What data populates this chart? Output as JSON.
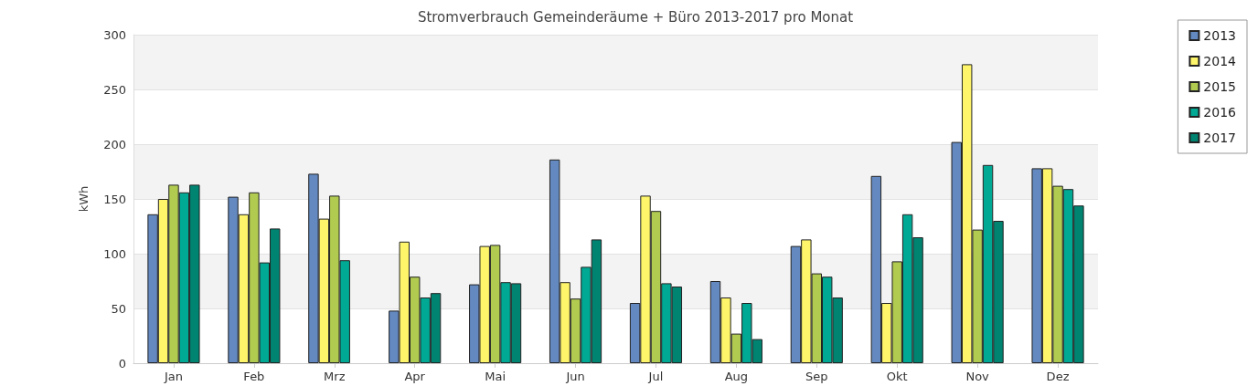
{
  "chart_data": {
    "type": "bar",
    "title": "Stromverbrauch Gemeinderäume + Büro 2013-2017 pro Monat",
    "ylabel": "kWh",
    "categories": [
      "Jan",
      "Feb",
      "Mrz",
      "Apr",
      "Mai",
      "Jun",
      "Jul",
      "Aug",
      "Sep",
      "Okt",
      "Nov",
      "Dez"
    ],
    "series": [
      {
        "name": "2013",
        "color": "#6389c0",
        "values": [
          136,
          152,
          173,
          48,
          72,
          186,
          55,
          75,
          107,
          171,
          202,
          178
        ]
      },
      {
        "name": "2014",
        "color": "#fef56a",
        "values": [
          150,
          136,
          132,
          111,
          107,
          74,
          153,
          60,
          113,
          55,
          273,
          178
        ]
      },
      {
        "name": "2015",
        "color": "#b1cb51",
        "values": [
          163,
          156,
          153,
          79,
          108,
          59,
          139,
          27,
          82,
          93,
          122,
          162
        ]
      },
      {
        "name": "2016",
        "color": "#00a994",
        "values": [
          156,
          92,
          94,
          60,
          74,
          88,
          73,
          55,
          79,
          136,
          181,
          159
        ]
      },
      {
        "name": "2017",
        "color": "#008472",
        "values": [
          163,
          123,
          null,
          64,
          73,
          113,
          70,
          22,
          60,
          115,
          130,
          144
        ]
      }
    ],
    "ylim": [
      0,
      300
    ],
    "yticks": [
      0,
      50,
      100,
      150,
      200,
      250,
      300
    ],
    "grid": "y",
    "legend": "top right"
  }
}
